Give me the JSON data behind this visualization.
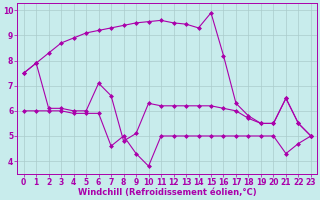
{
  "background_color": "#c8ecec",
  "line_color": "#aa00aa",
  "grid_color": "#aacccc",
  "xlabel": "Windchill (Refroidissement éolien,°C)",
  "xlim": [
    -0.5,
    23.5
  ],
  "ylim": [
    3.5,
    10.3
  ],
  "yticks": [
    4,
    5,
    6,
    7,
    8,
    9,
    10
  ],
  "xticks": [
    0,
    1,
    2,
    3,
    4,
    5,
    6,
    7,
    8,
    9,
    10,
    11,
    12,
    13,
    14,
    15,
    16,
    17,
    18,
    19,
    20,
    21,
    22,
    23
  ],
  "series": [
    {
      "x": [
        0,
        1,
        2,
        3,
        4,
        5,
        6,
        7,
        8,
        9,
        10,
        11,
        12,
        13,
        14,
        15,
        16,
        17,
        18,
        19,
        20,
        21,
        22,
        23
      ],
      "y": [
        7.5,
        7.9,
        8.3,
        8.7,
        8.9,
        9.1,
        9.2,
        9.3,
        9.4,
        9.5,
        9.55,
        9.6,
        9.5,
        9.45,
        9.3,
        9.9,
        8.2,
        6.3,
        5.8,
        5.5,
        5.5,
        6.5,
        5.5,
        5.0
      ]
    },
    {
      "x": [
        0,
        1,
        2,
        3,
        4,
        5,
        6,
        7,
        8,
        9,
        10,
        11,
        12,
        13,
        14,
        15,
        16,
        17,
        18,
        19,
        20,
        21,
        22,
        23
      ],
      "y": [
        7.5,
        7.9,
        6.1,
        6.1,
        6.0,
        6.0,
        7.1,
        6.6,
        4.8,
        5.1,
        6.3,
        6.2,
        6.2,
        6.2,
        6.2,
        6.2,
        6.1,
        6.0,
        5.7,
        5.5,
        5.5,
        6.5,
        5.5,
        5.0
      ]
    },
    {
      "x": [
        0,
        1,
        2,
        3,
        4,
        5,
        6,
        7,
        8,
        9,
        10,
        11,
        12,
        13,
        14,
        15,
        16,
        17,
        18,
        19,
        20,
        21,
        22,
        23
      ],
      "y": [
        6.0,
        6.0,
        6.0,
        6.0,
        5.9,
        5.9,
        5.9,
        4.6,
        5.0,
        4.3,
        3.8,
        5.0,
        5.0,
        5.0,
        5.0,
        5.0,
        5.0,
        5.0,
        5.0,
        5.0,
        5.0,
        4.3,
        4.7,
        5.0
      ]
    }
  ],
  "xlabel_fontsize": 6,
  "tick_fontsize": 5.5,
  "marker": "D",
  "markersize": 2.0,
  "linewidth": 0.8
}
